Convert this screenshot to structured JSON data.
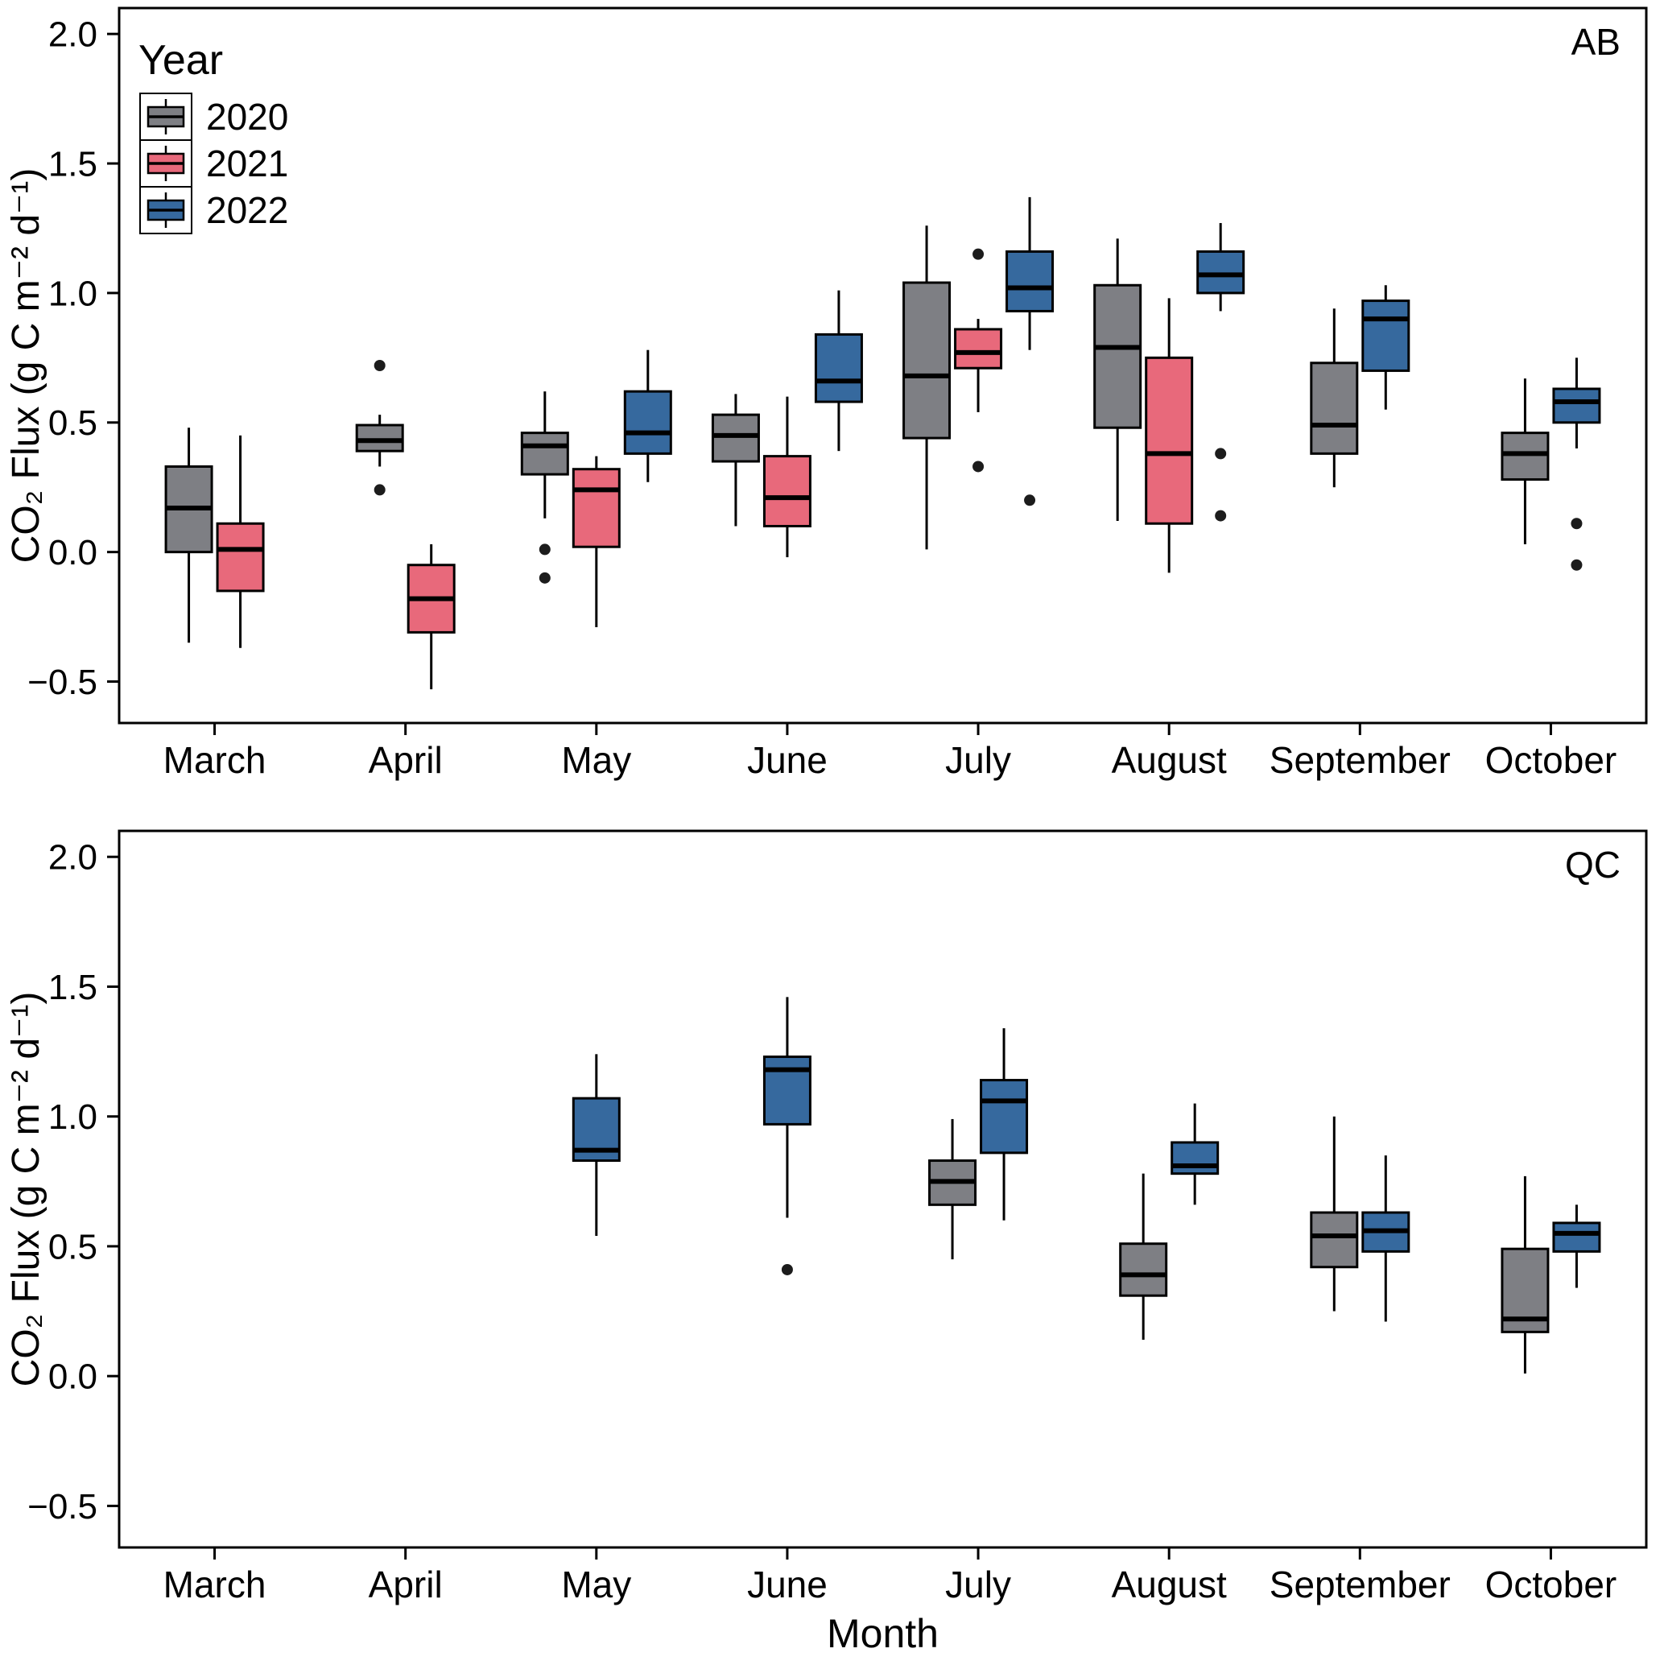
{
  "figure": {
    "xlabel": "Month",
    "ylabel": "CO₂ Flux (g C m⁻² d⁻¹)",
    "panels": [
      "AB",
      "QC"
    ]
  },
  "legend": {
    "title": "Year",
    "position": "top-left-inside-first-panel",
    "entries": [
      {
        "label": "2020",
        "color": "#7E7F84"
      },
      {
        "label": "2021",
        "color": "#E8697B"
      },
      {
        "label": "2022",
        "color": "#36699E"
      }
    ]
  },
  "chart_data": [
    {
      "type": "boxplot",
      "panel_tag": "AB",
      "ylabel": "CO₂ Flux (g C m⁻² d⁻¹)",
      "ylim": [
        -0.66,
        2.1
      ],
      "yticks": [
        -0.5,
        0.0,
        0.5,
        1.0,
        1.5,
        2.0
      ],
      "grid": false,
      "legend_position": "top-left-inside",
      "categories": [
        "March",
        "April",
        "May",
        "June",
        "July",
        "August",
        "September",
        "October"
      ],
      "series": [
        {
          "name": "2020",
          "color": "#7E7F84",
          "boxes": [
            {
              "month": "March",
              "low": -0.35,
              "q1": 0.0,
              "median": 0.17,
              "q3": 0.33,
              "high": 0.48,
              "outliers": []
            },
            {
              "month": "April",
              "low": 0.33,
              "q1": 0.39,
              "median": 0.43,
              "q3": 0.49,
              "high": 0.53,
              "outliers": [
                0.72,
                0.24
              ]
            },
            {
              "month": "May",
              "low": 0.13,
              "q1": 0.3,
              "median": 0.41,
              "q3": 0.46,
              "high": 0.62,
              "outliers": [
                0.01,
                -0.1
              ]
            },
            {
              "month": "June",
              "low": 0.1,
              "q1": 0.35,
              "median": 0.45,
              "q3": 0.53,
              "high": 0.61,
              "outliers": []
            },
            {
              "month": "July",
              "low": 0.01,
              "q1": 0.44,
              "median": 0.68,
              "q3": 1.04,
              "high": 1.26,
              "outliers": []
            },
            {
              "month": "August",
              "low": 0.12,
              "q1": 0.48,
              "median": 0.79,
              "q3": 1.03,
              "high": 1.21,
              "outliers": []
            },
            {
              "month": "September",
              "low": 0.25,
              "q1": 0.38,
              "median": 0.49,
              "q3": 0.73,
              "high": 0.94,
              "outliers": []
            },
            {
              "month": "October",
              "low": 0.03,
              "q1": 0.28,
              "median": 0.38,
              "q3": 0.46,
              "high": 0.67,
              "outliers": []
            }
          ]
        },
        {
          "name": "2021",
          "color": "#E8697B",
          "boxes": [
            {
              "month": "March",
              "low": -0.37,
              "q1": -0.15,
              "median": 0.01,
              "q3": 0.11,
              "high": 0.45,
              "outliers": []
            },
            {
              "month": "April",
              "low": -0.53,
              "q1": -0.31,
              "median": -0.18,
              "q3": -0.05,
              "high": 0.03,
              "outliers": []
            },
            {
              "month": "May",
              "low": -0.29,
              "q1": 0.02,
              "median": 0.24,
              "q3": 0.32,
              "high": 0.37,
              "outliers": []
            },
            {
              "month": "June",
              "low": -0.02,
              "q1": 0.1,
              "median": 0.21,
              "q3": 0.37,
              "high": 0.6,
              "outliers": []
            },
            {
              "month": "July",
              "low": 0.54,
              "q1": 0.71,
              "median": 0.77,
              "q3": 0.86,
              "high": 0.9,
              "outliers": [
                1.15,
                0.33
              ]
            },
            {
              "month": "August",
              "low": -0.08,
              "q1": 0.11,
              "median": 0.38,
              "q3": 0.75,
              "high": 0.98,
              "outliers": []
            }
          ]
        },
        {
          "name": "2022",
          "color": "#36699E",
          "boxes": [
            {
              "month": "May",
              "low": 0.27,
              "q1": 0.38,
              "median": 0.46,
              "q3": 0.62,
              "high": 0.78,
              "outliers": []
            },
            {
              "month": "June",
              "low": 0.39,
              "q1": 0.58,
              "median": 0.66,
              "q3": 0.84,
              "high": 1.01,
              "outliers": []
            },
            {
              "month": "July",
              "low": 0.78,
              "q1": 0.93,
              "median": 1.02,
              "q3": 1.16,
              "high": 1.37,
              "outliers": [
                0.2
              ]
            },
            {
              "month": "August",
              "low": 0.93,
              "q1": 1.0,
              "median": 1.07,
              "q3": 1.16,
              "high": 1.27,
              "outliers": [
                0.38,
                0.14
              ]
            },
            {
              "month": "September",
              "low": 0.55,
              "q1": 0.7,
              "median": 0.9,
              "q3": 0.97,
              "high": 1.03,
              "outliers": []
            },
            {
              "month": "October",
              "low": 0.4,
              "q1": 0.5,
              "median": 0.58,
              "q3": 0.63,
              "high": 0.75,
              "outliers": [
                0.11,
                -0.05
              ]
            }
          ]
        }
      ]
    },
    {
      "type": "boxplot",
      "panel_tag": "QC",
      "ylabel": "CO₂ Flux (g C m⁻² d⁻¹)",
      "ylim": [
        -0.66,
        2.1
      ],
      "yticks": [
        -0.5,
        0.0,
        0.5,
        1.0,
        1.5,
        2.0
      ],
      "grid": false,
      "categories": [
        "March",
        "April",
        "May",
        "June",
        "July",
        "August",
        "September",
        "October"
      ],
      "series": [
        {
          "name": "2020",
          "color": "#7E7F84",
          "boxes": [
            {
              "month": "July",
              "low": 0.45,
              "q1": 0.66,
              "median": 0.75,
              "q3": 0.83,
              "high": 0.99,
              "outliers": []
            },
            {
              "month": "August",
              "low": 0.14,
              "q1": 0.31,
              "median": 0.39,
              "q3": 0.51,
              "high": 0.78,
              "outliers": []
            },
            {
              "month": "September",
              "low": 0.25,
              "q1": 0.42,
              "median": 0.54,
              "q3": 0.63,
              "high": 1.0,
              "outliers": []
            },
            {
              "month": "October",
              "low": 0.01,
              "q1": 0.17,
              "median": 0.22,
              "q3": 0.49,
              "high": 0.77,
              "outliers": []
            }
          ]
        },
        {
          "name": "2022",
          "color": "#36699E",
          "boxes": [
            {
              "month": "May",
              "low": 0.54,
              "q1": 0.83,
              "median": 0.87,
              "q3": 1.07,
              "high": 1.24,
              "outliers": []
            },
            {
              "month": "June",
              "low": 0.61,
              "q1": 0.97,
              "median": 1.18,
              "q3": 1.23,
              "high": 1.46,
              "outliers": [
                0.41
              ]
            },
            {
              "month": "July",
              "low": 0.6,
              "q1": 0.86,
              "median": 1.06,
              "q3": 1.14,
              "high": 1.34,
              "outliers": []
            },
            {
              "month": "August",
              "low": 0.66,
              "q1": 0.78,
              "median": 0.81,
              "q3": 0.9,
              "high": 1.05,
              "outliers": []
            },
            {
              "month": "September",
              "low": 0.21,
              "q1": 0.48,
              "median": 0.56,
              "q3": 0.63,
              "high": 0.85,
              "outliers": []
            },
            {
              "month": "October",
              "low": 0.34,
              "q1": 0.48,
              "median": 0.55,
              "q3": 0.59,
              "high": 0.66,
              "outliers": []
            }
          ]
        }
      ]
    }
  ]
}
